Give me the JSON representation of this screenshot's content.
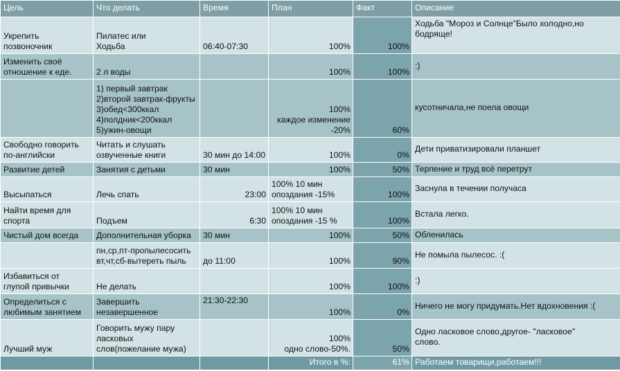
{
  "headers": [
    "Цель",
    "Что делать",
    "Время",
    "План",
    "Факт",
    "Описание"
  ],
  "rows": [
    {
      "goal": "Укрепить\nпозвоночник",
      "action": "Пилатес или\nХодьба",
      "time": "06:40-07:30",
      "plan": "100%",
      "fact": "100%",
      "desc": "Ходьба \"Мороз и Солнце\"Было холодно,но\nбодряще!"
    },
    {
      "goal": "Изменить своё\nотношение к еде.",
      "action": "2 л воды",
      "time": "",
      "plan": "100%",
      "fact": "100%",
      "desc": ":)"
    },
    {
      "goal": "",
      "action": "1) первый завтрак\n2)второй завтрак-фрукты\n3)обед<300ккал\n4)полдник<200ккал\n5)ужин-овощи",
      "time": "",
      "plan": "100%\nкаждое изменение\n-20%",
      "fact": "60%",
      "desc": "кусотничала,не поела овощи"
    },
    {
      "goal": "Свободно говорить\nпо-английски",
      "action": "Читать и слушать\nозвученные книги",
      "time": "30 мин до 14:00",
      "plan": "100%",
      "fact": "0%",
      "desc": "Дети приватизировали планшет"
    },
    {
      "goal": "Развитие детей",
      "action": "Занятия с детьми",
      "time": "30 мин",
      "plan": "100%",
      "fact": "50%",
      "desc": "Терпение и труд всё перетрут"
    },
    {
      "goal": "Высыпаться",
      "action": "Лечь спать",
      "time": "23:00",
      "plan": "100% 10 мин\nопоздания -15%",
      "fact": "100%",
      "desc": "Заснула в течении получаса"
    },
    {
      "goal": "Найти время для\nспорта",
      "action": "Подъем",
      "time": "6:30",
      "plan": "100% 10 мин\nопоздания  -15 %",
      "fact": "100%",
      "desc": "Встала легко."
    },
    {
      "goal": "Чистый дом всегда",
      "action": "Дополнительная уборка",
      "time": "30 мин",
      "plan": "100%",
      "fact": "50%",
      "desc": "Обленилась"
    },
    {
      "goal": "",
      "action": "пн,ср,пт-пропылесосить\nвт,чт,сб-вытереть пыль",
      "time": "до 11:00",
      "plan": "100%",
      "fact": "90%",
      "desc": "Не помыла пылесос. :("
    },
    {
      "goal": "Избавиться от\nглупой привычки",
      "action": "Не делать",
      "time": "",
      "plan": "100%",
      "fact": "100%",
      "desc": ":)"
    },
    {
      "goal": "Определиться с\nлюбимым занятием",
      "action": "Завершить\nнезавершенное",
      "time": "21:30-22:30",
      "plan": "100%",
      "fact": "0%",
      "desc": "Ничего не могу придумать.Нет вдохновения :("
    },
    {
      "goal": "Лучший муж",
      "action": "Говорить мужу пару\nласковых\nслов(пожелание мужа)",
      "time": "",
      "plan": "100%\nодно слово-50%.",
      "fact": "50%",
      "desc": "Одно ласковое слово,другое- \"ласковое\"\nслово."
    }
  ],
  "total": {
    "label": "Итого в %:",
    "value": "61%",
    "desc": "Работаем товарищи,работаем!!!"
  }
}
